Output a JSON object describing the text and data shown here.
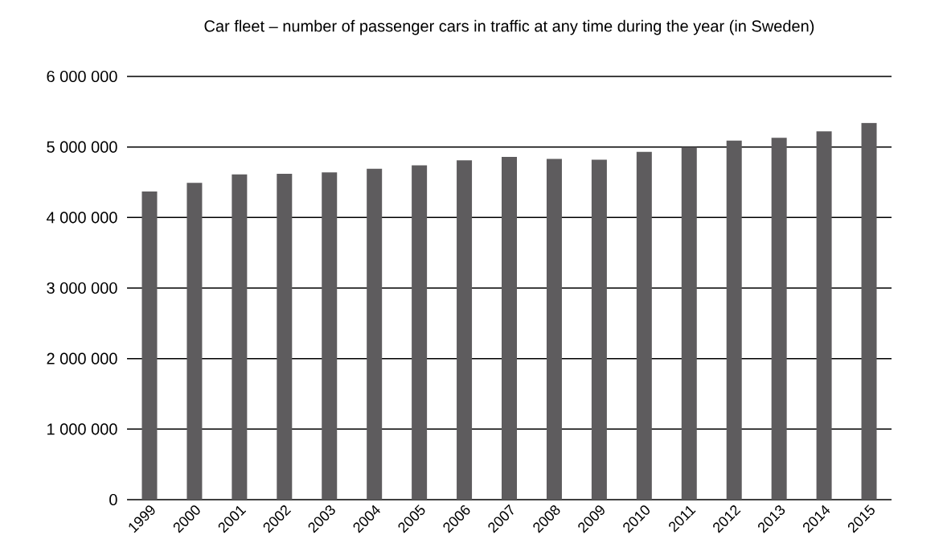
{
  "chart_data": {
    "type": "bar",
    "title": "Car fleet – number of passenger cars in traffic at any time during the year (in Sweden)",
    "categories": [
      "1999",
      "2000",
      "2001",
      "2002",
      "2003",
      "2004",
      "2005",
      "2006",
      "2007",
      "2008",
      "2009",
      "2010",
      "2011",
      "2012",
      "2013",
      "2014",
      "2015"
    ],
    "values": [
      4370000,
      4490000,
      4610000,
      4620000,
      4640000,
      4690000,
      4740000,
      4810000,
      4860000,
      4830000,
      4820000,
      4930000,
      5000000,
      5090000,
      5130000,
      5220000,
      5340000
    ],
    "color": "#5e5c5e",
    "ylim": [
      0,
      6000000
    ],
    "yticks": [
      {
        "value": 0,
        "label": "0"
      },
      {
        "value": 1000000,
        "label": "1 000 000"
      },
      {
        "value": 2000000,
        "label": "2 000 000"
      },
      {
        "value": 3000000,
        "label": "3 000 000"
      },
      {
        "value": 4000000,
        "label": "4 000 000"
      },
      {
        "value": 5000000,
        "label": "5 000 000"
      },
      {
        "value": 6000000,
        "label": "6 000 000"
      }
    ],
    "grid": "y"
  }
}
